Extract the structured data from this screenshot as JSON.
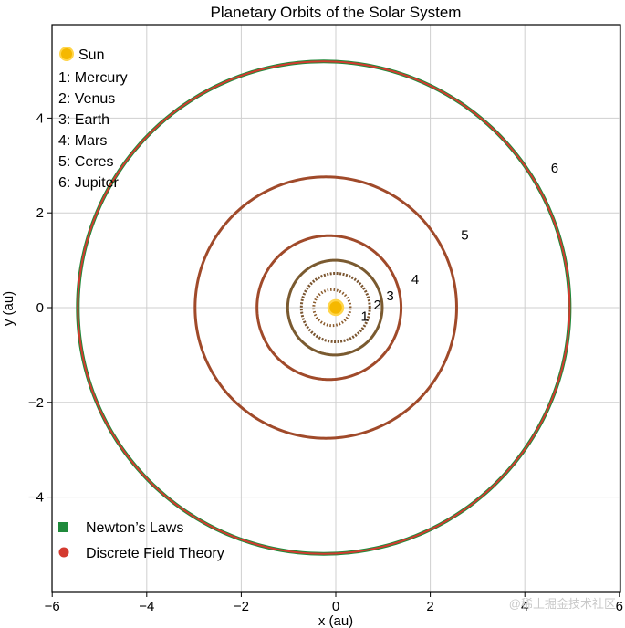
{
  "chart_data": {
    "type": "line",
    "title": "Planetary Orbits of the Solar System",
    "xlabel": "x (au)",
    "ylabel": "y (au)",
    "xlim": [
      -6,
      6
    ],
    "ylim": [
      -5.9,
      6.2
    ],
    "xticks": [
      -6,
      -4,
      -2,
      0,
      2,
      4,
      6
    ],
    "yticks": [
      -4,
      -2,
      0,
      2,
      4
    ],
    "tick_labels_x": [
      "−6",
      "−4",
      "−2",
      "0",
      "2",
      "4",
      "6"
    ],
    "tick_labels_y": [
      "−4",
      "−2",
      "0",
      "2",
      "4"
    ],
    "grid": true,
    "sun": {
      "label": "Sun",
      "x": 0,
      "y": 0,
      "color": "#f5b800",
      "edge": "#ffd54a"
    },
    "bodies": [
      {
        "num": 1,
        "name": "1: Mercury",
        "label": "1",
        "a": 0.387,
        "e": 0.2056,
        "color": "#8a5a2b",
        "dotted": true,
        "label_x": 0.53,
        "label_y": -0.18
      },
      {
        "num": 2,
        "name": "2: Venus",
        "label": "2",
        "a": 0.723,
        "e": 0.0068,
        "color": "#7a5530",
        "dotted": true,
        "label_x": 0.8,
        "label_y": 0.06
      },
      {
        "num": 3,
        "name": "3: Earth",
        "label": "3",
        "a": 1.0,
        "e": 0.0167,
        "color": "#7a5a30",
        "dotted": false,
        "label_x": 1.07,
        "label_y": 0.25
      },
      {
        "num": 4,
        "name": "4: Mars",
        "label": "4",
        "a": 1.524,
        "e": 0.0934,
        "color": "#a04a2a",
        "dotted": false,
        "label_x": 1.6,
        "label_y": 0.6
      },
      {
        "num": 5,
        "name": "5: Ceres",
        "label": "5",
        "a": 2.767,
        "e": 0.0758,
        "color": "#a04a2a",
        "dotted": false,
        "label_x": 2.65,
        "label_y": 1.53
      },
      {
        "num": 6,
        "name": "6: Jupiter",
        "label": "6",
        "a": 5.203,
        "e": 0.0489,
        "color": "#b5472a",
        "dotted": false,
        "label_x": 4.55,
        "label_y": 2.95
      }
    ],
    "series": [
      {
        "name": "Newton’s Laws",
        "color": "#1f8a3b",
        "marker": "square"
      },
      {
        "name": "Discrete Field Theory",
        "color": "#d43a2f",
        "marker": "circle"
      }
    ],
    "legend_position": "bottom-left",
    "body_legend_position": "top-left"
  },
  "watermark": "@稀土掘金技术社区"
}
